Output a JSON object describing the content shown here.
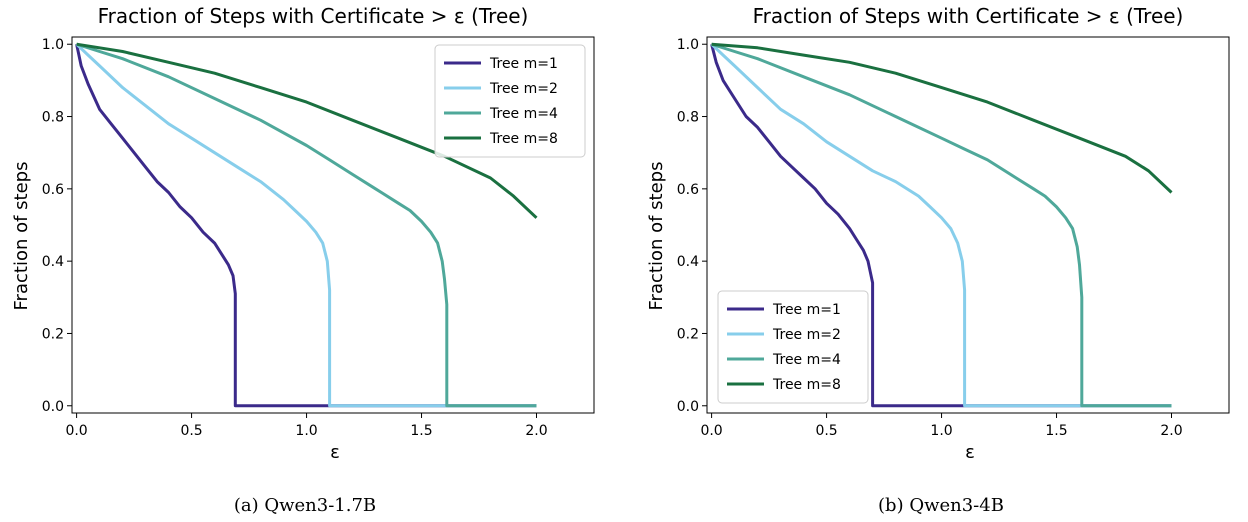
{
  "colors": {
    "m1": "#3b2a8a",
    "m2": "#87ceeb",
    "m4": "#4fa89a",
    "m8": "#1a7040"
  },
  "chart_data": [
    {
      "type": "line",
      "title": "Fraction of Steps with Certificate > ε  (Tree)",
      "xlabel": "ε",
      "ylabel": "Fraction of steps",
      "caption": "(a) Qwen3-1.7B",
      "xlim": [
        -0.02,
        2.25
      ],
      "ylim": [
        -0.02,
        1.02
      ],
      "xticks": [
        0.0,
        0.5,
        1.0,
        1.5,
        2.0
      ],
      "xtick_labels": [
        "0.0",
        "0.5",
        "1.0",
        "1.5",
        "2.0"
      ],
      "yticks": [
        0.0,
        0.2,
        0.4,
        0.6,
        0.8,
        1.0
      ],
      "ytick_labels": [
        "0.0",
        "0.2",
        "0.4",
        "0.6",
        "0.8",
        "1.0"
      ],
      "grid": false,
      "legend_position": "top-right",
      "series": [
        {
          "name": "Tree m=1",
          "color_key": "m1",
          "x": [
            0,
            0.02,
            0.05,
            0.1,
            0.15,
            0.2,
            0.25,
            0.3,
            0.35,
            0.4,
            0.45,
            0.5,
            0.55,
            0.6,
            0.63,
            0.66,
            0.68,
            0.69,
            0.69,
            0.8,
            1.0,
            1.5,
            2.0
          ],
          "y": [
            1.0,
            0.94,
            0.89,
            0.82,
            0.78,
            0.74,
            0.7,
            0.66,
            0.62,
            0.59,
            0.55,
            0.52,
            0.48,
            0.45,
            0.42,
            0.39,
            0.36,
            0.31,
            0.0,
            0.0,
            0.0,
            0.0,
            0.0
          ]
        },
        {
          "name": "Tree m=2",
          "color_key": "m2",
          "x": [
            0,
            0.05,
            0.1,
            0.2,
            0.3,
            0.4,
            0.5,
            0.6,
            0.7,
            0.8,
            0.9,
            0.95,
            1.0,
            1.04,
            1.07,
            1.09,
            1.1,
            1.1,
            1.5,
            2.0
          ],
          "y": [
            1.0,
            0.97,
            0.94,
            0.88,
            0.83,
            0.78,
            0.74,
            0.7,
            0.66,
            0.62,
            0.57,
            0.54,
            0.51,
            0.48,
            0.45,
            0.4,
            0.32,
            0.0,
            0.0,
            0.0
          ]
        },
        {
          "name": "Tree m=4",
          "color_key": "m4",
          "x": [
            0,
            0.1,
            0.2,
            0.4,
            0.6,
            0.8,
            1.0,
            1.1,
            1.2,
            1.3,
            1.4,
            1.45,
            1.5,
            1.54,
            1.57,
            1.59,
            1.6,
            1.61,
            1.61,
            2.0
          ],
          "y": [
            1.0,
            0.98,
            0.96,
            0.91,
            0.85,
            0.79,
            0.72,
            0.68,
            0.64,
            0.6,
            0.56,
            0.54,
            0.51,
            0.48,
            0.45,
            0.4,
            0.35,
            0.28,
            0.0,
            0.0
          ]
        },
        {
          "name": "Tree m=8",
          "color_key": "m8",
          "x": [
            0,
            0.2,
            0.4,
            0.6,
            0.8,
            1.0,
            1.2,
            1.4,
            1.6,
            1.8,
            1.9,
            2.0
          ],
          "y": [
            1.0,
            0.98,
            0.95,
            0.92,
            0.88,
            0.84,
            0.79,
            0.74,
            0.69,
            0.63,
            0.58,
            0.52
          ]
        }
      ]
    },
    {
      "type": "line",
      "title": "Fraction of Steps with Certificate > ε  (Tree)",
      "xlabel": "ε",
      "ylabel": "Fraction of steps",
      "caption": "(b) Qwen3-4B",
      "xlim": [
        -0.02,
        2.25
      ],
      "ylim": [
        -0.02,
        1.02
      ],
      "xticks": [
        0.0,
        0.5,
        1.0,
        1.5,
        2.0
      ],
      "xtick_labels": [
        "0.0",
        "0.5",
        "1.0",
        "1.5",
        "2.0"
      ],
      "yticks": [
        0.0,
        0.2,
        0.4,
        0.6,
        0.8,
        1.0
      ],
      "ytick_labels": [
        "0.0",
        "0.2",
        "0.4",
        "0.6",
        "0.8",
        "1.0"
      ],
      "grid": false,
      "legend_position": "bottom-left",
      "series": [
        {
          "name": "Tree m=1",
          "color_key": "m1",
          "x": [
            0,
            0.02,
            0.05,
            0.1,
            0.15,
            0.2,
            0.25,
            0.3,
            0.35,
            0.4,
            0.45,
            0.5,
            0.55,
            0.6,
            0.63,
            0.66,
            0.68,
            0.69,
            0.7,
            0.7,
            0.8,
            1.0,
            1.5,
            2.0
          ],
          "y": [
            1.0,
            0.95,
            0.9,
            0.85,
            0.8,
            0.77,
            0.73,
            0.69,
            0.66,
            0.63,
            0.6,
            0.56,
            0.53,
            0.49,
            0.46,
            0.43,
            0.4,
            0.37,
            0.34,
            0.0,
            0.0,
            0.0,
            0.0,
            0.0
          ]
        },
        {
          "name": "Tree m=2",
          "color_key": "m2",
          "x": [
            0,
            0.05,
            0.1,
            0.2,
            0.3,
            0.4,
            0.5,
            0.6,
            0.7,
            0.8,
            0.9,
            0.95,
            1.0,
            1.04,
            1.07,
            1.09,
            1.1,
            1.1,
            1.5,
            2.0
          ],
          "y": [
            1.0,
            0.97,
            0.94,
            0.88,
            0.82,
            0.78,
            0.73,
            0.69,
            0.65,
            0.62,
            0.58,
            0.55,
            0.52,
            0.49,
            0.45,
            0.4,
            0.32,
            0.0,
            0.0,
            0.0
          ]
        },
        {
          "name": "Tree m=4",
          "color_key": "m4",
          "x": [
            0,
            0.1,
            0.2,
            0.4,
            0.6,
            0.8,
            1.0,
            1.1,
            1.2,
            1.3,
            1.4,
            1.45,
            1.5,
            1.54,
            1.57,
            1.59,
            1.6,
            1.61,
            1.61,
            2.0
          ],
          "y": [
            1.0,
            0.98,
            0.96,
            0.91,
            0.86,
            0.8,
            0.74,
            0.71,
            0.68,
            0.64,
            0.6,
            0.58,
            0.55,
            0.52,
            0.49,
            0.44,
            0.39,
            0.3,
            0.0,
            0.0
          ]
        },
        {
          "name": "Tree m=8",
          "color_key": "m8",
          "x": [
            0,
            0.2,
            0.4,
            0.6,
            0.8,
            1.0,
            1.2,
            1.4,
            1.6,
            1.8,
            1.9,
            2.0
          ],
          "y": [
            1.0,
            0.99,
            0.97,
            0.95,
            0.92,
            0.88,
            0.84,
            0.79,
            0.74,
            0.69,
            0.65,
            0.59
          ]
        }
      ]
    }
  ]
}
